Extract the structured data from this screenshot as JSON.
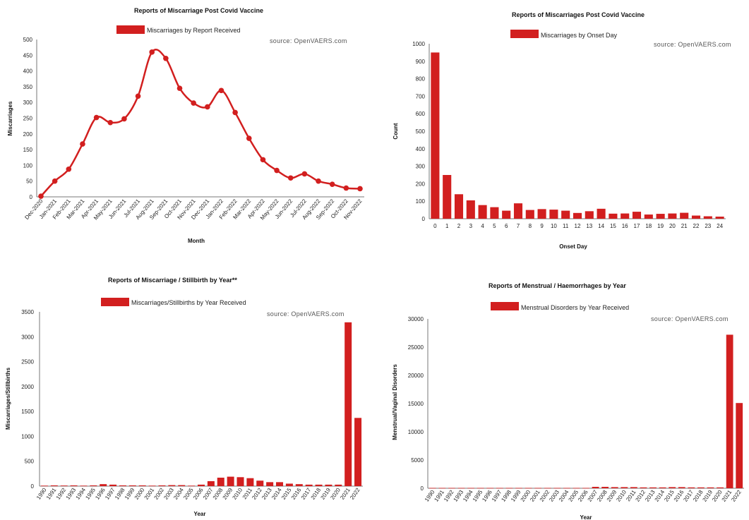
{
  "chart_data": [
    {
      "type": "line",
      "title": "Reports of Miscarriage Post Covid Vaccine",
      "legend": "Miscarriages by Report Received",
      "source": "source: OpenVAERS.com",
      "xlabel": "Month",
      "ylabel": "Miscarriages",
      "ylim": [
        0,
        500
      ],
      "yticks": [
        0,
        50,
        100,
        150,
        200,
        250,
        300,
        350,
        400,
        450,
        500
      ],
      "color": "#d21f1f",
      "categories": [
        "Dec-2020",
        "Jan-2021",
        "Feb-2021",
        "Mar-2021",
        "Apr-2021",
        "May-2021",
        "Jun-2021",
        "Jul-2021",
        "Aug-2021",
        "Sep-2021",
        "Oct-2021",
        "Nov-2021",
        "Dec-2021",
        "Jan-2022",
        "Feb-2022",
        "Mar-2022",
        "Apr-2022",
        "May-2022",
        "Jun-2022",
        "Jul-2022",
        "Aug-2022",
        "Sep-2022",
        "Oct-2022",
        "Nov-2022"
      ],
      "values": [
        2,
        50,
        88,
        168,
        252,
        236,
        248,
        320,
        460,
        440,
        345,
        298,
        286,
        338,
        268,
        186,
        118,
        84,
        60,
        73,
        50,
        40,
        28,
        26
      ]
    },
    {
      "type": "bar",
      "title": "Reports of Miscarriages Post Covid Vaccine",
      "legend": "Miscarriages by Onset Day",
      "source": "source: OpenVAERS.com",
      "xlabel": "Onset Day",
      "ylabel": "Count",
      "ylim": [
        0,
        1000
      ],
      "yticks": [
        0,
        100,
        200,
        300,
        400,
        500,
        600,
        700,
        800,
        900,
        1000
      ],
      "color": "#d21f1f",
      "categories": [
        "0",
        "1",
        "2",
        "3",
        "4",
        "5",
        "6",
        "7",
        "8",
        "9",
        "10",
        "11",
        "12",
        "13",
        "14",
        "15",
        "16",
        "17",
        "18",
        "19",
        "20",
        "21",
        "22",
        "23",
        "24"
      ],
      "values": [
        950,
        250,
        140,
        105,
        78,
        66,
        46,
        88,
        50,
        55,
        52,
        46,
        33,
        43,
        57,
        29,
        30,
        40,
        24,
        28,
        30,
        34,
        18,
        14,
        12
      ]
    },
    {
      "type": "bar",
      "title": "Reports of Miscarriage / Stillbirth by Year**",
      "legend": "Miscarriages/Stillbirths by Year Received",
      "source": "source: OpenVAERS.com",
      "xlabel": "Year",
      "ylabel": "Miscarriages/Stillbirths",
      "ylim": [
        0,
        3500
      ],
      "yticks": [
        0,
        500,
        1000,
        1500,
        2000,
        2500,
        3000,
        3500
      ],
      "color": "#d21f1f",
      "categories": [
        "1990",
        "1991",
        "1992",
        "1993",
        "1994",
        "1995",
        "1996",
        "1997",
        "1998",
        "1999",
        "2000",
        "2001",
        "2002",
        "2003",
        "2004",
        "2005",
        "2006",
        "2007",
        "2008",
        "2009",
        "2010",
        "2011",
        "2012",
        "2013",
        "2014",
        "2015",
        "2016",
        "2017",
        "2018",
        "2019",
        "2020",
        "2021",
        "2022"
      ],
      "values": [
        10,
        15,
        12,
        15,
        10,
        15,
        40,
        30,
        15,
        15,
        15,
        10,
        15,
        20,
        20,
        10,
        30,
        100,
        170,
        190,
        180,
        160,
        110,
        80,
        80,
        50,
        40,
        30,
        30,
        30,
        30,
        3290,
        1370
      ]
    },
    {
      "type": "bar",
      "title": "Reports of Menstrual / Haemorrhages by Year",
      "legend": "Menstrual Disorders by Year Received",
      "source": "source: OpenVAERS.com",
      "xlabel": "Year",
      "ylabel": "Menstrual/Vaginal Disorders",
      "ylim": [
        0,
        30000
      ],
      "yticks": [
        0,
        5000,
        10000,
        15000,
        20000,
        25000,
        30000
      ],
      "color": "#d21f1f",
      "categories": [
        "1990",
        "1991",
        "1992",
        "1993",
        "1994",
        "1995",
        "1996",
        "1997",
        "1998",
        "1999",
        "2000",
        "2001",
        "2002",
        "2003",
        "2004",
        "2005",
        "2006",
        "2007",
        "2008",
        "2009",
        "2010",
        "2011",
        "2012",
        "2013",
        "2014",
        "2015",
        "2016",
        "2017",
        "2018",
        "2019",
        "2020",
        "2021",
        "2022"
      ],
      "values": [
        60,
        60,
        60,
        60,
        60,
        60,
        60,
        60,
        60,
        60,
        60,
        60,
        60,
        60,
        60,
        60,
        60,
        250,
        250,
        200,
        200,
        200,
        150,
        150,
        150,
        200,
        200,
        150,
        150,
        150,
        150,
        27200,
        15100
      ]
    }
  ]
}
